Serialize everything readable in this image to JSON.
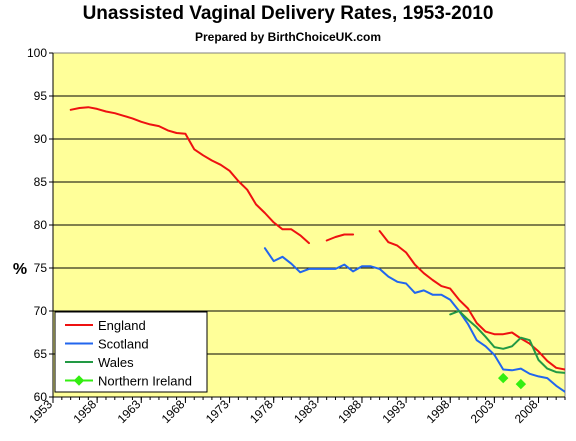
{
  "chart_data": {
    "type": "line",
    "title": "Unassisted Vaginal Delivery Rates, 1953-2010",
    "subtitle": "Prepared by BirthChoiceUK.com",
    "xlabel": "",
    "ylabel": "%",
    "xlim": [
      1953,
      2011
    ],
    "ylim": [
      60,
      100
    ],
    "x_ticks": [
      "1953",
      "1958",
      "1963",
      "1968",
      "1973",
      "1978",
      "1983",
      "1988",
      "1993",
      "1998",
      "2003",
      "2008"
    ],
    "y_ticks": [
      "60",
      "65",
      "70",
      "75",
      "80",
      "85",
      "90",
      "95",
      "100"
    ],
    "grid": "horizontal",
    "legend_position": "bottom-left",
    "plot_background": "#ffff99",
    "series": [
      {
        "name": "England",
        "color": "#ee1111",
        "marker": "none",
        "segments": [
          [
            [
              1955,
              93.4
            ],
            [
              1956,
              93.6
            ],
            [
              1957,
              93.7
            ],
            [
              1958,
              93.5
            ],
            [
              1959,
              93.2
            ],
            [
              1960,
              93.0
            ],
            [
              1961,
              92.7
            ],
            [
              1962,
              92.4
            ],
            [
              1963,
              92.0
            ],
            [
              1964,
              91.7
            ],
            [
              1965,
              91.5
            ],
            [
              1966,
              91.0
            ],
            [
              1967,
              90.7
            ],
            [
              1968,
              90.6
            ],
            [
              1969,
              88.8
            ],
            [
              1970,
              88.1
            ],
            [
              1971,
              87.5
            ],
            [
              1972,
              87.0
            ],
            [
              1973,
              86.3
            ],
            [
              1974,
              85.1
            ],
            [
              1975,
              84.1
            ],
            [
              1976,
              82.4
            ],
            [
              1977,
              81.4
            ],
            [
              1978,
              80.3
            ],
            [
              1979,
              79.5
            ],
            [
              1980,
              79.5
            ],
            [
              1981,
              78.8
            ],
            [
              1982,
              77.9
            ]
          ],
          [
            [
              1984,
              78.2
            ],
            [
              1985,
              78.6
            ],
            [
              1986,
              78.9
            ],
            [
              1987,
              78.9
            ]
          ],
          [
            [
              1990,
              79.3
            ],
            [
              1991,
              78.0
            ],
            [
              1992,
              77.6
            ],
            [
              1993,
              76.8
            ],
            [
              1994,
              75.4
            ],
            [
              1995,
              74.4
            ],
            [
              1996,
              73.6
            ],
            [
              1997,
              72.9
            ],
            [
              1998,
              72.6
            ],
            [
              1999,
              71.3
            ],
            [
              2000,
              70.3
            ],
            [
              2001,
              68.6
            ],
            [
              2002,
              67.6
            ],
            [
              2003,
              67.3
            ],
            [
              2004,
              67.3
            ],
            [
              2005,
              67.5
            ],
            [
              2006,
              66.8
            ],
            [
              2007,
              66.2
            ],
            [
              2008,
              65.3
            ],
            [
              2009,
              64.2
            ],
            [
              2010,
              63.4
            ],
            [
              2011,
              63.2
            ],
            [
              2012,
              62.9
            ]
          ]
        ]
      },
      {
        "name": "Scotland",
        "color": "#2266ee",
        "marker": "none",
        "segments": [
          [
            [
              1977,
              77.3
            ],
            [
              1978,
              75.8
            ],
            [
              1979,
              76.3
            ],
            [
              1980,
              75.5
            ],
            [
              1981,
              74.5
            ],
            [
              1982,
              74.9
            ],
            [
              1983,
              74.9
            ],
            [
              1984,
              74.9
            ],
            [
              1985,
              74.9
            ],
            [
              1986,
              75.4
            ],
            [
              1987,
              74.6
            ],
            [
              1988,
              75.2
            ],
            [
              1989,
              75.2
            ],
            [
              1990,
              74.9
            ],
            [
              1991,
              74.0
            ],
            [
              1992,
              73.4
            ],
            [
              1993,
              73.2
            ],
            [
              1994,
              72.1
            ],
            [
              1995,
              72.4
            ],
            [
              1996,
              71.9
            ],
            [
              1997,
              71.9
            ],
            [
              1998,
              71.3
            ],
            [
              1999,
              70.0
            ],
            [
              2000,
              68.5
            ],
            [
              2001,
              66.6
            ],
            [
              2002,
              65.9
            ],
            [
              2003,
              64.9
            ],
            [
              2004,
              63.2
            ],
            [
              2005,
              63.1
            ],
            [
              2006,
              63.3
            ],
            [
              2007,
              62.7
            ],
            [
              2008,
              62.4
            ],
            [
              2009,
              62.2
            ],
            [
              2010,
              61.3
            ],
            [
              2011,
              60.6
            ]
          ]
        ]
      },
      {
        "name": "Wales",
        "color": "#229944",
        "marker": "none",
        "segments": [
          [
            [
              1998,
              69.6
            ],
            [
              1999,
              70.0
            ],
            [
              2000,
              69.0
            ],
            [
              2001,
              68.1
            ],
            [
              2002,
              67.0
            ],
            [
              2003,
              65.8
            ],
            [
              2004,
              65.6
            ],
            [
              2005,
              65.9
            ],
            [
              2006,
              66.9
            ],
            [
              2007,
              66.6
            ],
            [
              2008,
              64.3
            ],
            [
              2009,
              63.3
            ],
            [
              2010,
              62.9
            ],
            [
              2011,
              62.8
            ],
            [
              2012,
              61.7
            ]
          ]
        ]
      },
      {
        "name": "Northern Ireland",
        "color": "#33ee11",
        "marker": "diamond",
        "line": false,
        "segments": [
          [
            [
              2004,
              62.2
            ],
            [
              2006,
              61.5
            ]
          ]
        ]
      }
    ]
  }
}
